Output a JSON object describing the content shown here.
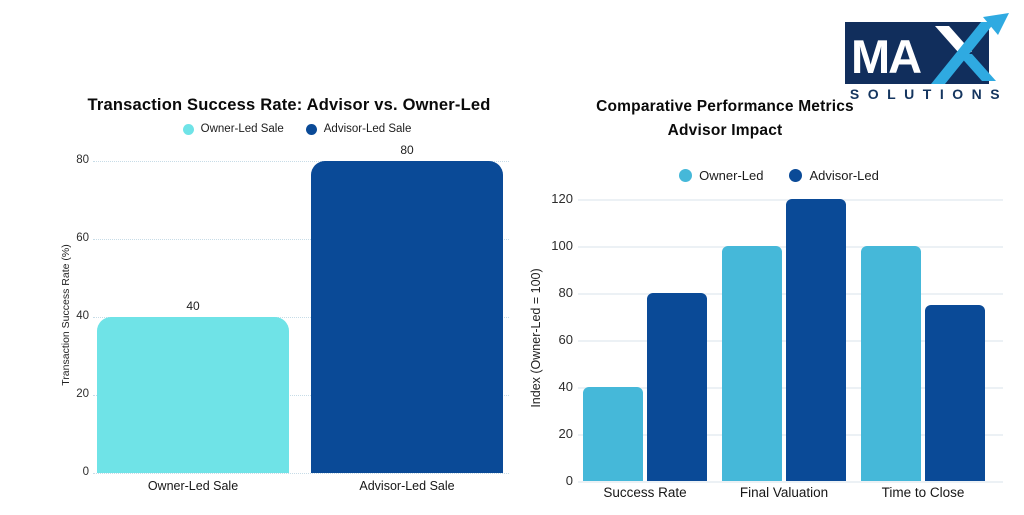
{
  "logo": {
    "ma": "MA",
    "solutions": "SOLUTIONS",
    "navy": "#112E5C",
    "blue": "#2FAAE1"
  },
  "chart_data": [
    {
      "type": "bar",
      "title": "Transaction Success Rate: Advisor vs. Owner-Led",
      "ylabel": "Transaction Success Rate (%)",
      "categories": [
        "Owner-Led Sale",
        "Advisor-Led Sale"
      ],
      "values": [
        40,
        80
      ],
      "data_labels": [
        "40",
        "80"
      ],
      "bar_colors": [
        "#6FE3E7",
        "#0A4A97"
      ],
      "yticks": [
        0,
        20,
        40,
        60,
        80
      ],
      "ylim": [
        0,
        80
      ],
      "grid": "horizontal dotted",
      "legend_position": "top",
      "legend": [
        {
          "label": "Owner-Led Sale",
          "color": "#6FE3E7"
        },
        {
          "label": "Advisor-Led Sale",
          "color": "#0A4A97"
        }
      ]
    },
    {
      "type": "bar",
      "title": "Comparative Performance Metrics",
      "subtitle": "Advisor Impact",
      "ylabel": "Index (Owner-Led = 100)",
      "categories": [
        "Success Rate",
        "Final Valuation",
        "Time to Close"
      ],
      "series": [
        {
          "name": "Owner-Led",
          "color": "#45B8D9",
          "values": [
            40,
            100,
            100
          ]
        },
        {
          "name": "Advisor-Led",
          "color": "#0A4A97",
          "values": [
            80,
            120,
            75
          ]
        }
      ],
      "yticks": [
        0,
        20,
        40,
        60,
        80,
        100,
        120
      ],
      "ylim": [
        0,
        120
      ],
      "grid": "horizontal solid",
      "legend_position": "top"
    }
  ]
}
